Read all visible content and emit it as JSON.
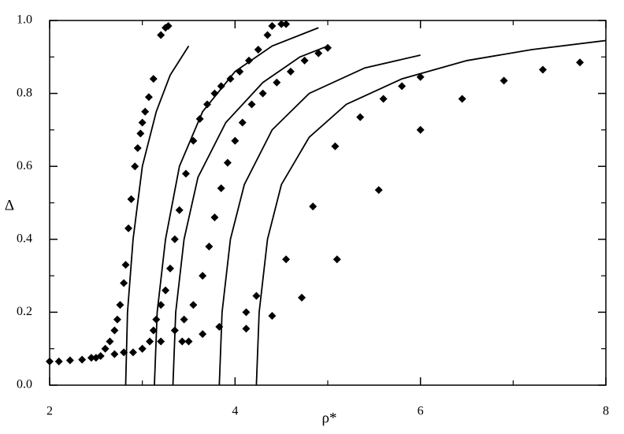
{
  "chart_data": {
    "type": "scatter",
    "xlabel": "ρ*",
    "ylabel": "Δ",
    "xlim": [
      2,
      8
    ],
    "ylim": [
      0,
      1
    ],
    "xticks": [
      2,
      4,
      6,
      8
    ],
    "xminor": [
      3,
      5,
      7
    ],
    "yticks": [
      {
        "value": 0,
        "label": "0.0"
      },
      {
        "value": 0.2,
        "label": "0.2"
      },
      {
        "value": 0.4,
        "label": "0.4"
      },
      {
        "value": 0.6,
        "label": "0.6"
      },
      {
        "value": 0.8,
        "label": "0.8"
      },
      {
        "value": 1,
        "label": "1.0"
      }
    ],
    "yminor": [
      0.1,
      0.3,
      0.5,
      0.7,
      0.9
    ],
    "series": [
      {
        "type": "line",
        "color": "#000000",
        "x": [
          2.82,
          2.84,
          2.9,
          3.0,
          3.15,
          3.3,
          3.5
        ],
        "values": [
          0,
          0.2,
          0.4,
          0.6,
          0.75,
          0.85,
          0.93
        ]
      },
      {
        "type": "line",
        "color": "#000000",
        "x": [
          3.13,
          3.16,
          3.25,
          3.4,
          3.65,
          4.0,
          4.4,
          4.9
        ],
        "values": [
          0,
          0.2,
          0.4,
          0.6,
          0.75,
          0.86,
          0.93,
          0.98
        ]
      },
      {
        "type": "line",
        "color": "#000000",
        "x": [
          3.33,
          3.36,
          3.45,
          3.6,
          3.9,
          4.3,
          4.7,
          5.0
        ],
        "values": [
          0,
          0.2,
          0.4,
          0.57,
          0.72,
          0.83,
          0.9,
          0.93
        ]
      },
      {
        "type": "line",
        "color": "#000000",
        "x": [
          3.83,
          3.86,
          3.95,
          4.1,
          4.4,
          4.8,
          5.4,
          6.0
        ],
        "values": [
          0,
          0.2,
          0.4,
          0.55,
          0.7,
          0.8,
          0.87,
          0.905
        ]
      },
      {
        "type": "line",
        "color": "#000000",
        "x": [
          4.23,
          4.26,
          4.35,
          4.5,
          4.8,
          5.2,
          5.8,
          6.5,
          7.2,
          8.0
        ],
        "values": [
          0,
          0.2,
          0.4,
          0.55,
          0.68,
          0.77,
          0.84,
          0.89,
          0.92,
          0.945
        ]
      },
      {
        "type": "scatter",
        "color": "#000000",
        "x": [
          2.0,
          2.1,
          2.22,
          2.35,
          2.45,
          2.55,
          2.6,
          2.65,
          2.7,
          2.73,
          2.76,
          2.8,
          2.82,
          2.85,
          2.88,
          2.92,
          2.95,
          2.98,
          3.0,
          3.03,
          3.07,
          3.12,
          3.2,
          3.25,
          3.28
        ],
        "values": [
          0.065,
          0.065,
          0.068,
          0.07,
          0.075,
          0.08,
          0.1,
          0.12,
          0.15,
          0.18,
          0.22,
          0.28,
          0.33,
          0.43,
          0.51,
          0.6,
          0.65,
          0.69,
          0.72,
          0.75,
          0.79,
          0.84,
          0.96,
          0.98,
          0.985
        ]
      },
      {
        "type": "scatter",
        "color": "#000000",
        "x": [
          2.5,
          2.7,
          2.9,
          3.0,
          3.08,
          3.12,
          3.15,
          3.2,
          3.25,
          3.3,
          3.35,
          3.4,
          3.47,
          3.55,
          3.62,
          3.7,
          3.78,
          3.85,
          3.95,
          4.05,
          4.15,
          4.25,
          4.35,
          4.4,
          4.5,
          4.55
        ],
        "values": [
          0.075,
          0.085,
          0.09,
          0.1,
          0.12,
          0.15,
          0.18,
          0.22,
          0.26,
          0.32,
          0.4,
          0.48,
          0.58,
          0.67,
          0.73,
          0.77,
          0.8,
          0.82,
          0.84,
          0.86,
          0.89,
          0.92,
          0.96,
          0.985,
          0.99,
          0.99
        ]
      },
      {
        "type": "scatter",
        "color": "#000000",
        "x": [
          2.8,
          3.0,
          3.2,
          3.35,
          3.45,
          3.55,
          3.65,
          3.72,
          3.78,
          3.85,
          3.92,
          4.0,
          4.08,
          4.18,
          4.3,
          4.45,
          4.6,
          4.75,
          4.9,
          5.0
        ],
        "values": [
          0.09,
          0.1,
          0.12,
          0.15,
          0.18,
          0.22,
          0.3,
          0.38,
          0.46,
          0.54,
          0.61,
          0.67,
          0.72,
          0.77,
          0.8,
          0.83,
          0.86,
          0.89,
          0.91,
          0.925
        ]
      },
      {
        "type": "scatter",
        "color": "#000000",
        "x": [
          3.43,
          3.5,
          3.65,
          3.83,
          4.12,
          4.23,
          4.55,
          4.84,
          5.08,
          5.35,
          5.6,
          5.8,
          6.0
        ],
        "values": [
          0.12,
          0.12,
          0.14,
          0.16,
          0.2,
          0.245,
          0.345,
          0.49,
          0.655,
          0.735,
          0.785,
          0.82,
          0.845
        ]
      },
      {
        "type": "scatter",
        "color": "#000000",
        "x": [
          4.12,
          4.4,
          4.72,
          5.1,
          5.55,
          6.0,
          6.45,
          6.9,
          7.32,
          7.72
        ],
        "values": [
          0.155,
          0.19,
          0.24,
          0.345,
          0.535,
          0.7,
          0.785,
          0.835,
          0.865,
          0.885
        ]
      }
    ]
  }
}
